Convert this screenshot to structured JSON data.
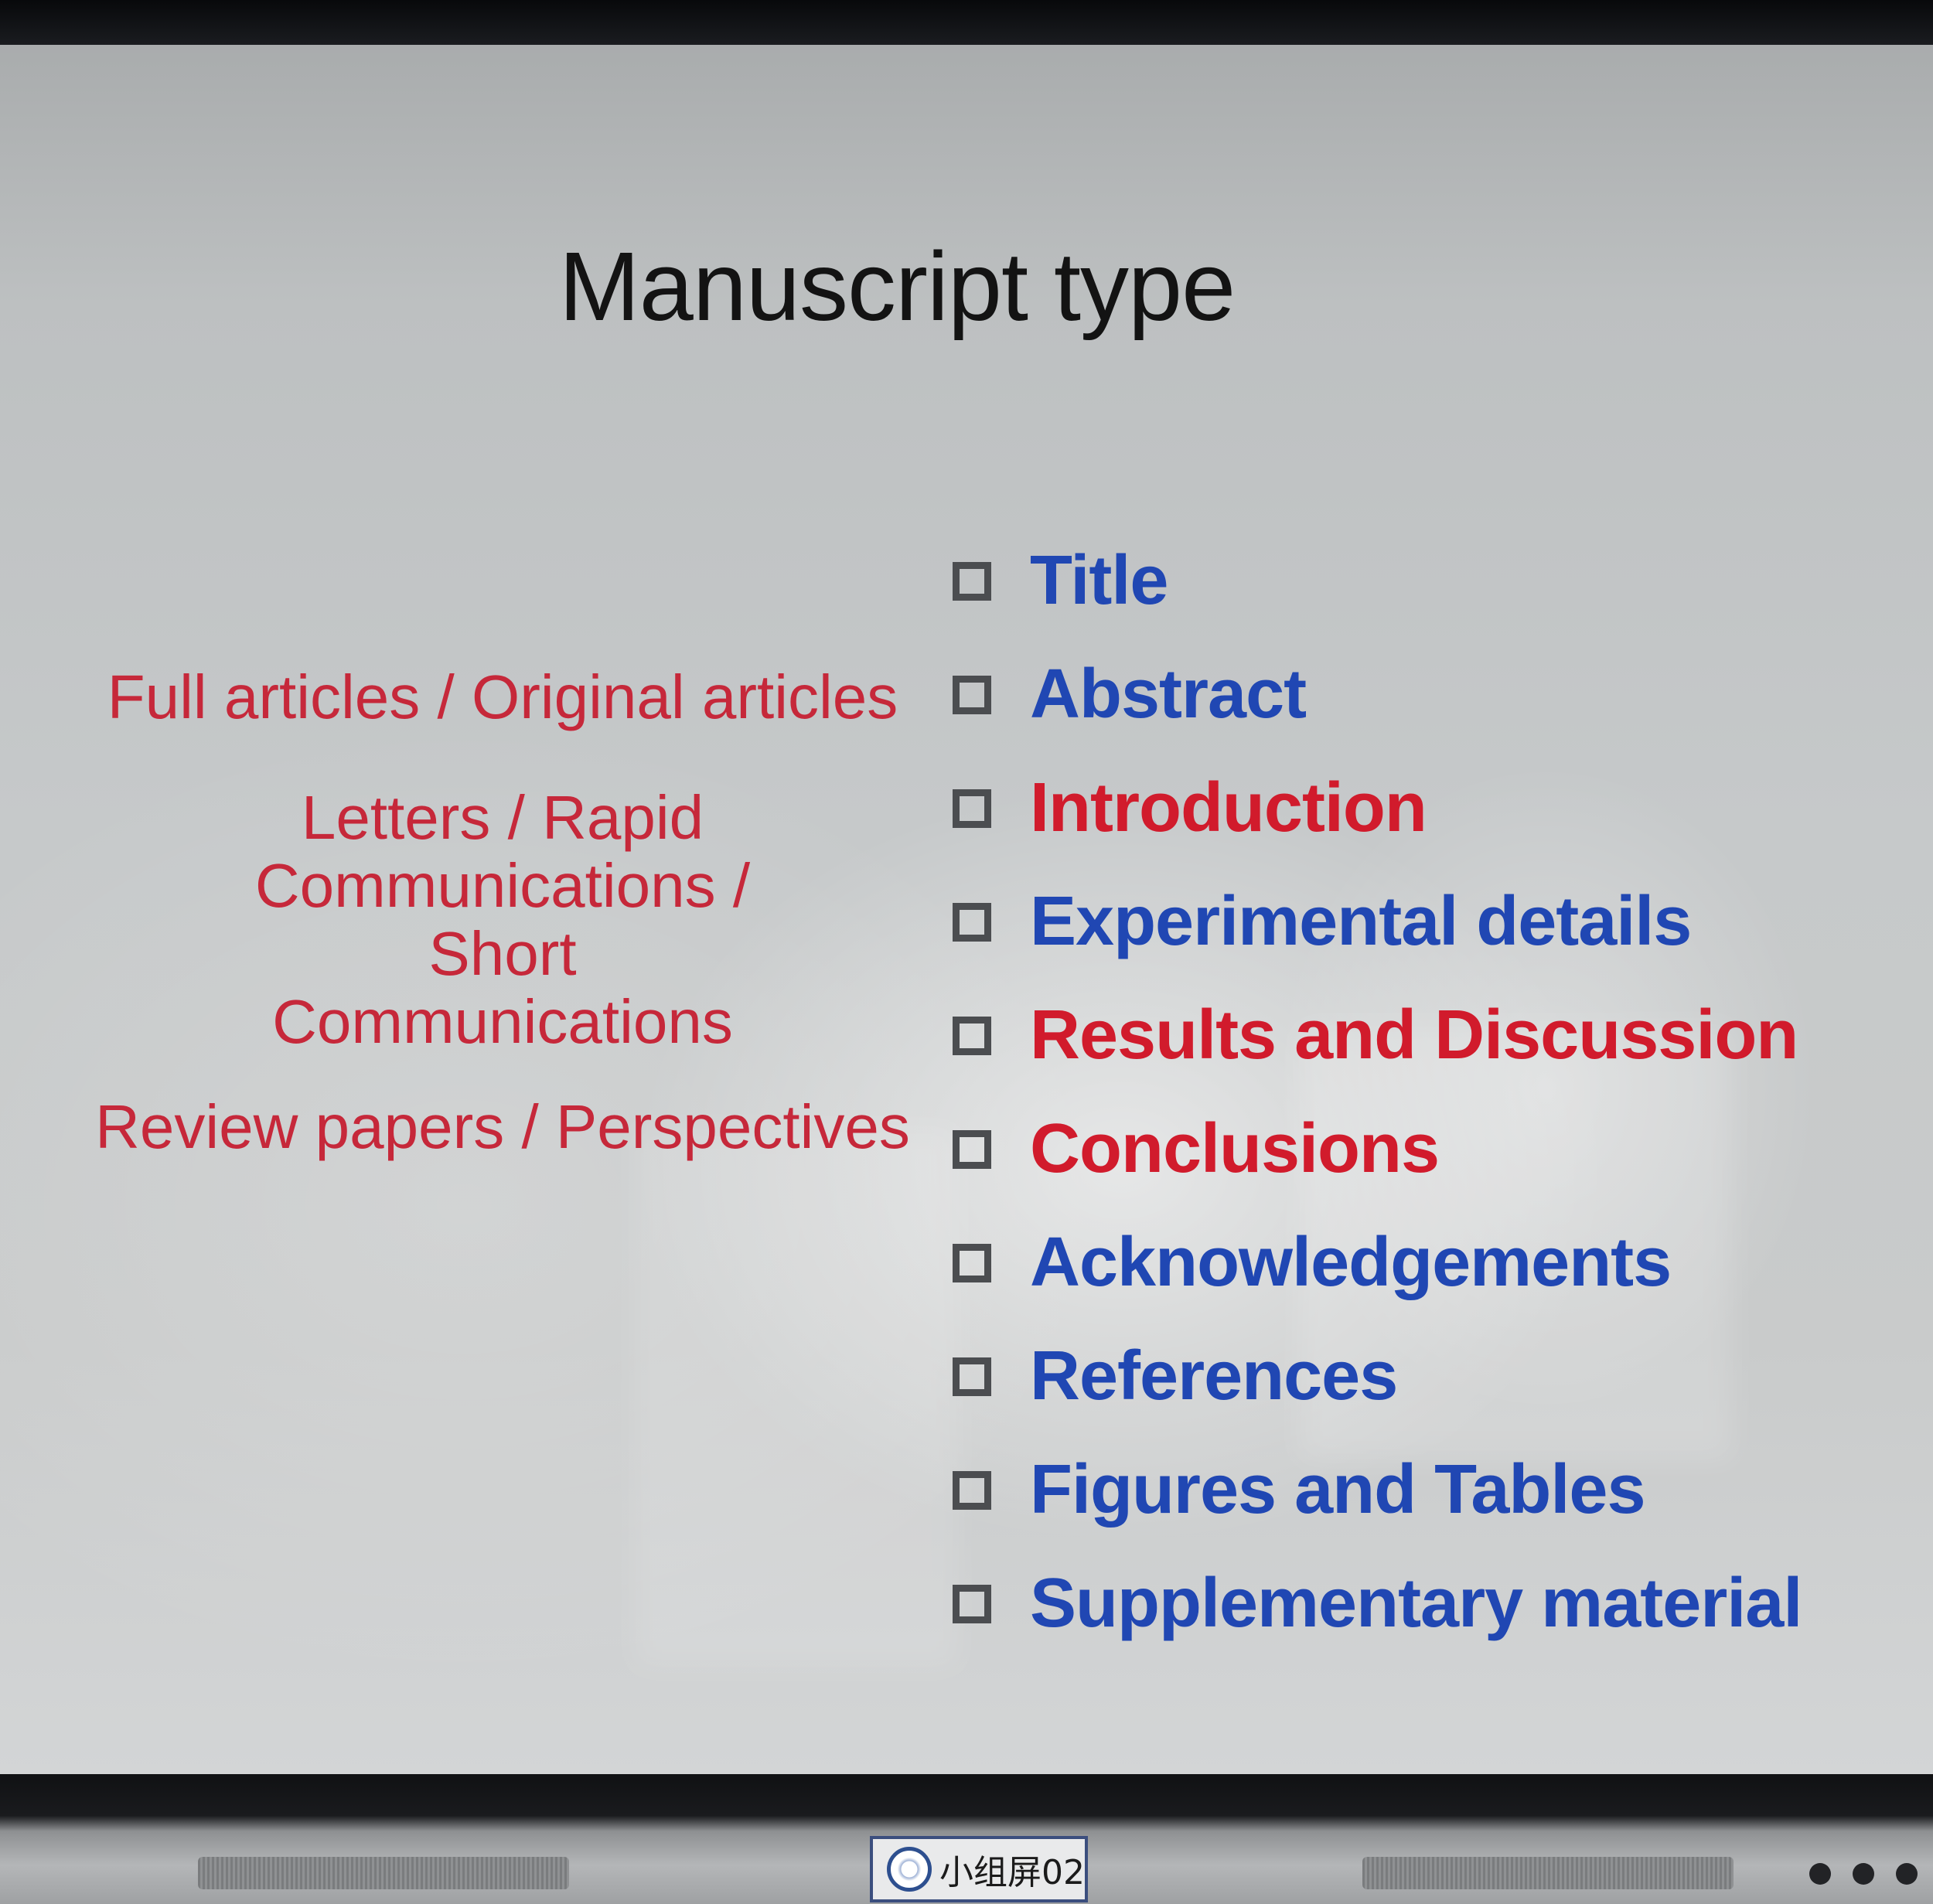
{
  "slide": {
    "title": "Manuscript type",
    "manuscript_types": [
      "Full articles / Original articles",
      "Letters / Rapid Communications / Short Communications",
      "Review papers / Perspectives"
    ],
    "sections": [
      {
        "label": "Title",
        "color": "#2047b3"
      },
      {
        "label": "Abstract",
        "color": "#2047b3"
      },
      {
        "label": "Introduction",
        "color": "#d11b2c"
      },
      {
        "label": "Experimental details",
        "color": "#2047b3"
      },
      {
        "label": "Results and Discussion",
        "color": "#d11b2c"
      },
      {
        "label": "Conclusions",
        "color": "#d11b2c"
      },
      {
        "label": "Acknowledgements",
        "color": "#2047b3"
      },
      {
        "label": "References",
        "color": "#2047b3"
      },
      {
        "label": "Figures and Tables",
        "color": "#2047b3"
      },
      {
        "label": "Supplementary material",
        "color": "#2047b3"
      }
    ]
  },
  "display_frame": {
    "nameplate_text": "小组屏02",
    "logo_icon": "university-seal-icon"
  },
  "colors": {
    "title": "#131313",
    "manuscript_types": "#c6283a",
    "checkbox": "#4b4d50"
  }
}
